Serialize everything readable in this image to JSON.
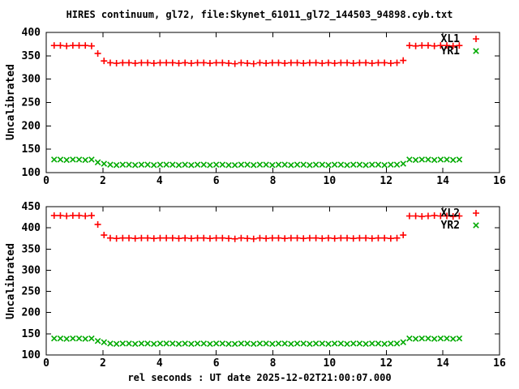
{
  "title": "HIRES continuum, gl72, file:Skynet_61011_gl72_144503_94898.cyb.txt",
  "xlabel": "rel seconds : UT date 2025-12-02T21:00:07.000",
  "colors": {
    "series_red": "#ff0000",
    "series_green": "#00aa00",
    "frame": "#000000",
    "text": "#000000",
    "background": "#ffffff"
  },
  "chart_data": [
    {
      "type": "scatter",
      "ylabel": "Uncalibrated",
      "xlim": [
        0,
        16
      ],
      "ylim": [
        100,
        400
      ],
      "xticks": [
        0,
        2,
        4,
        6,
        8,
        10,
        12,
        14,
        16
      ],
      "yticks": [
        100,
        150,
        200,
        250,
        300,
        350,
        400
      ],
      "grid": false,
      "legend_position": "top-right-inside",
      "legend": [
        {
          "label": "XL1",
          "marker": "plus",
          "color": "#ff0000"
        },
        {
          "label": "YR1",
          "marker": "cross",
          "color": "#00aa00"
        }
      ],
      "x": [
        0.28,
        0.5,
        0.72,
        0.94,
        1.16,
        1.38,
        1.6,
        1.82,
        2.04,
        2.26,
        2.48,
        2.7,
        2.92,
        3.14,
        3.36,
        3.58,
        3.8,
        4.02,
        4.24,
        4.46,
        4.68,
        4.9,
        5.12,
        5.34,
        5.56,
        5.78,
        6.0,
        6.22,
        6.44,
        6.66,
        6.88,
        7.1,
        7.32,
        7.54,
        7.76,
        7.98,
        8.2,
        8.42,
        8.64,
        8.86,
        9.08,
        9.3,
        9.52,
        9.74,
        9.96,
        10.18,
        10.4,
        10.62,
        10.84,
        11.06,
        11.28,
        11.5,
        11.72,
        11.94,
        12.16,
        12.38,
        12.6,
        12.82,
        13.04,
        13.26,
        13.48,
        13.7,
        13.92,
        14.14,
        14.36,
        14.58
      ],
      "series": [
        {
          "name": "XL1",
          "marker": "plus",
          "color": "#ff0000",
          "y": [
            372,
            372,
            371,
            372,
            372,
            372,
            371,
            355,
            339,
            335,
            334,
            335,
            335,
            334,
            335,
            335,
            334,
            335,
            335,
            335,
            334,
            335,
            334,
            335,
            335,
            334,
            335,
            335,
            334,
            333,
            335,
            334,
            333,
            335,
            334,
            335,
            335,
            334,
            335,
            335,
            334,
            335,
            335,
            334,
            335,
            334,
            335,
            335,
            334,
            335,
            335,
            334,
            335,
            335,
            334,
            335,
            340,
            372,
            371,
            372,
            372,
            371,
            372,
            372,
            371,
            372
          ]
        },
        {
          "name": "YR1",
          "marker": "cross",
          "color": "#00aa00",
          "y": [
            128,
            128,
            127,
            128,
            128,
            127,
            128,
            122,
            119,
            117,
            116,
            117,
            117,
            116,
            117,
            117,
            116,
            117,
            117,
            117,
            116,
            117,
            116,
            117,
            117,
            116,
            117,
            117,
            116,
            116,
            117,
            117,
            116,
            117,
            117,
            116,
            117,
            117,
            116,
            117,
            117,
            116,
            117,
            117,
            116,
            117,
            117,
            116,
            117,
            117,
            116,
            117,
            117,
            116,
            117,
            117,
            119,
            128,
            127,
            128,
            128,
            127,
            128,
            128,
            127,
            128
          ]
        }
      ]
    },
    {
      "type": "scatter",
      "ylabel": "Uncalibrated",
      "xlim": [
        0,
        16
      ],
      "ylim": [
        100,
        450
      ],
      "xticks": [
        0,
        2,
        4,
        6,
        8,
        10,
        12,
        14,
        16
      ],
      "yticks": [
        100,
        150,
        200,
        250,
        300,
        350,
        400,
        450
      ],
      "grid": false,
      "legend_position": "top-right-inside",
      "legend": [
        {
          "label": "XL2",
          "marker": "plus",
          "color": "#ff0000"
        },
        {
          "label": "YR2",
          "marker": "cross",
          "color": "#00aa00"
        }
      ],
      "x": [
        0.28,
        0.5,
        0.72,
        0.94,
        1.16,
        1.38,
        1.6,
        1.82,
        2.04,
        2.26,
        2.48,
        2.7,
        2.92,
        3.14,
        3.36,
        3.58,
        3.8,
        4.02,
        4.24,
        4.46,
        4.68,
        4.9,
        5.12,
        5.34,
        5.56,
        5.78,
        6.0,
        6.22,
        6.44,
        6.66,
        6.88,
        7.1,
        7.32,
        7.54,
        7.76,
        7.98,
        8.2,
        8.42,
        8.64,
        8.86,
        9.08,
        9.3,
        9.52,
        9.74,
        9.96,
        10.18,
        10.4,
        10.62,
        10.84,
        11.06,
        11.28,
        11.5,
        11.72,
        11.94,
        12.16,
        12.38,
        12.6,
        12.82,
        13.04,
        13.26,
        13.48,
        13.7,
        13.92,
        14.14,
        14.36,
        14.58
      ],
      "series": [
        {
          "name": "XL2",
          "marker": "plus",
          "color": "#ff0000",
          "y": [
            429,
            429,
            428,
            429,
            429,
            428,
            429,
            408,
            383,
            376,
            375,
            376,
            376,
            375,
            376,
            376,
            375,
            376,
            376,
            376,
            375,
            376,
            375,
            376,
            376,
            375,
            376,
            376,
            375,
            374,
            376,
            375,
            374,
            376,
            375,
            376,
            376,
            375,
            376,
            376,
            375,
            376,
            376,
            375,
            376,
            375,
            376,
            376,
            375,
            376,
            376,
            375,
            376,
            376,
            375,
            376,
            383,
            428,
            428,
            427,
            428,
            429,
            428,
            428,
            427,
            428
          ]
        },
        {
          "name": "YR2",
          "marker": "cross",
          "color": "#00aa00",
          "y": [
            139,
            139,
            138,
            139,
            139,
            138,
            139,
            133,
            130,
            127,
            126,
            127,
            127,
            126,
            127,
            127,
            126,
            127,
            127,
            127,
            126,
            127,
            126,
            127,
            127,
            126,
            127,
            127,
            126,
            126,
            127,
            127,
            126,
            127,
            127,
            126,
            127,
            127,
            126,
            127,
            127,
            126,
            127,
            127,
            126,
            127,
            127,
            126,
            127,
            127,
            126,
            127,
            127,
            126,
            127,
            127,
            130,
            139,
            138,
            139,
            139,
            138,
            139,
            139,
            138,
            139
          ]
        }
      ]
    }
  ]
}
